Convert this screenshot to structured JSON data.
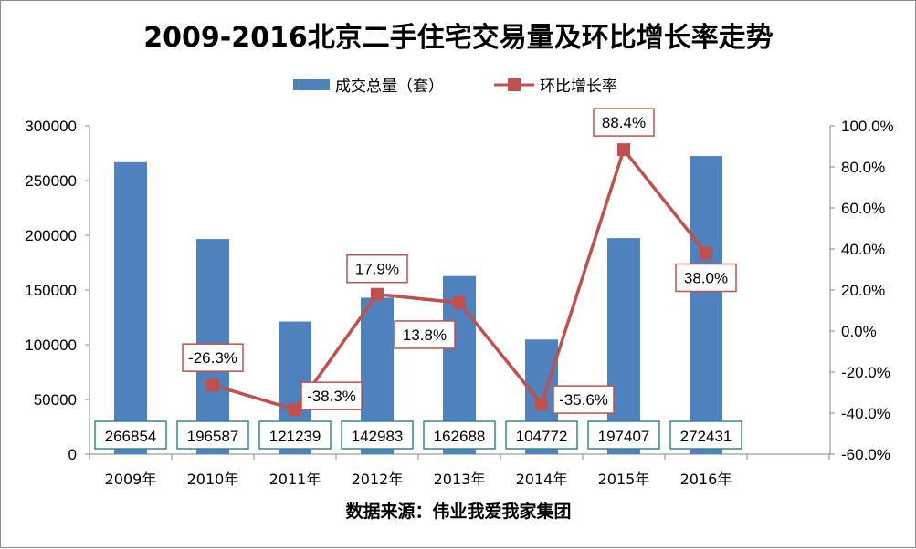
{
  "chart_data": {
    "type": "bar+line",
    "title": "2009-2016北京二手住宅交易量及环比增长率走势",
    "categories": [
      "2009年",
      "2010年",
      "2011年",
      "2012年",
      "2013年",
      "2014年",
      "2015年",
      "2016年"
    ],
    "series": [
      {
        "name": "成交总量（套）",
        "type": "bar",
        "axis": "left",
        "color": "#4f81bd",
        "values": [
          266854,
          196587,
          121239,
          142983,
          162688,
          104772,
          197407,
          272431
        ],
        "labels": [
          "266854",
          "196587",
          "121239",
          "142983",
          "162688",
          "104772",
          "197407",
          "272431"
        ]
      },
      {
        "name": "环比增长率",
        "type": "line",
        "axis": "right",
        "color": "#c0504d",
        "values": [
          null,
          -26.3,
          -38.3,
          17.9,
          13.8,
          -35.6,
          88.4,
          38.0
        ],
        "labels": [
          "",
          "-26.3%",
          "-38.3%",
          "17.9%",
          "13.8%",
          "-35.6%",
          "88.4%",
          "38.0%"
        ]
      }
    ],
    "y_left": {
      "min": 0,
      "max": 300000,
      "step": 50000,
      "ticks": [
        "0",
        "50000",
        "100000",
        "150000",
        "200000",
        "250000",
        "300000"
      ]
    },
    "y_right": {
      "min": -60,
      "max": 100,
      "step": 20,
      "ticks": [
        "-60.0%",
        "-40.0%",
        "-20.0%",
        "0.0%",
        "20.0%",
        "40.0%",
        "60.0%",
        "80.0%",
        "100.0%"
      ]
    },
    "grid": false,
    "legend_position": "top-center",
    "source": "数据来源：伟业我爱我家集团"
  }
}
